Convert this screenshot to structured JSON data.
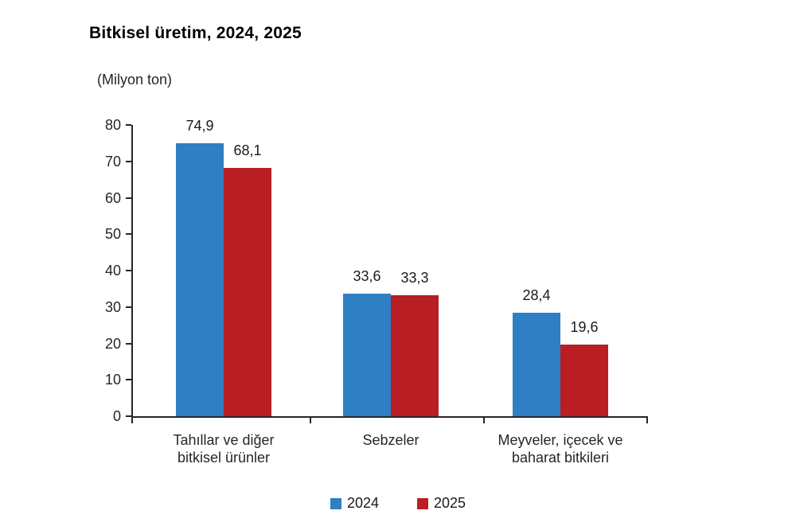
{
  "chart_data": {
    "type": "bar",
    "title": "Bitkisel üretim, 2024, 2025",
    "unit_label": "(Milyon ton)",
    "xlabel": "",
    "ylabel": "(Milyon ton)",
    "ylim": [
      0,
      80
    ],
    "yticks": [
      0,
      10,
      20,
      30,
      40,
      50,
      60,
      70,
      80
    ],
    "grid": false,
    "legend_position": "bottom",
    "categories": [
      {
        "label": "Tahıllar ve diğer bitkisel ürünler",
        "lines": [
          "Tahıllar ve diğer",
          "bitkisel ürünler"
        ]
      },
      {
        "label": "Sebzeler",
        "lines": [
          "Sebzeler"
        ]
      },
      {
        "label": "Meyveler, içecek ve baharat bitkileri",
        "lines": [
          "Meyveler, içecek ve",
          "baharat  bitkileri"
        ]
      }
    ],
    "series": [
      {
        "name": "2024",
        "color": "#2E7FC3",
        "values": [
          74.9,
          33.6,
          28.4
        ],
        "value_labels": [
          "74,9",
          "33,6",
          "28,4"
        ]
      },
      {
        "name": "2025",
        "color": "#B81E24",
        "values": [
          68.1,
          33.3,
          19.6
        ],
        "value_labels": [
          "68,1",
          "33,3",
          "19,6"
        ]
      }
    ]
  }
}
